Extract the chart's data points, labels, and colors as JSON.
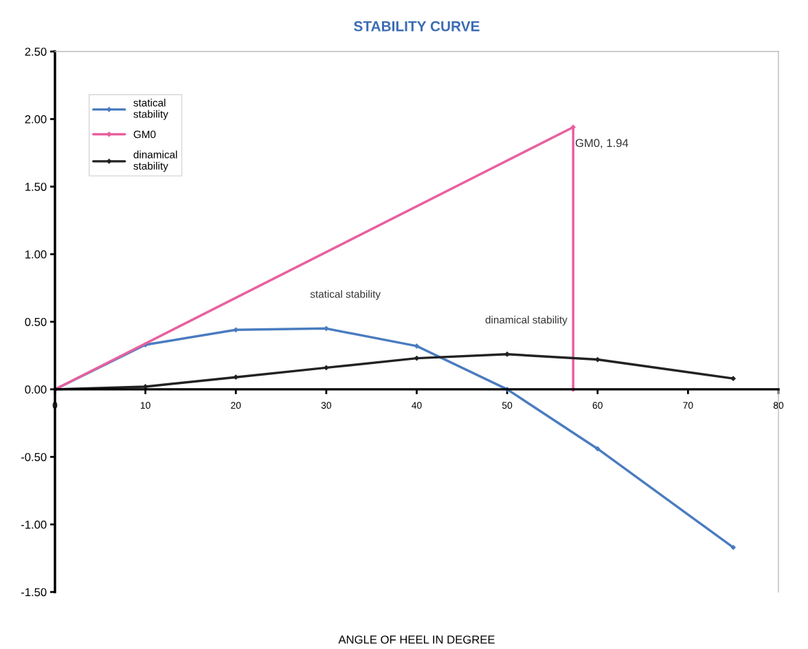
{
  "chart_data": {
    "type": "line",
    "title": "STABILITY CURVE",
    "xlabel": "ANGLE OF HEEL IN DEGREE",
    "xlim": [
      0,
      80
    ],
    "xticks": [
      0,
      10,
      20,
      30,
      40,
      50,
      60,
      70,
      80
    ],
    "ylim": [
      -1.5,
      2.5
    ],
    "yticks": [
      {
        "value": -1.5,
        "label": "-1.50"
      },
      {
        "value": -1.0,
        "label": "-1.00"
      },
      {
        "value": -0.5,
        "label": "-0.50"
      },
      {
        "value": 0,
        "label": "0.00"
      },
      {
        "value": 0.5,
        "label": "0.50"
      },
      {
        "value": 1.0,
        "label": "1.00"
      },
      {
        "value": 1.5,
        "label": "1.50"
      },
      {
        "value": 2.0,
        "label": "2.00"
      },
      {
        "value": 2.5,
        "label": "2.50"
      }
    ],
    "series": [
      {
        "name": "statical stability",
        "color": "#4a7cc0",
        "x": [
          0,
          10,
          20,
          30,
          40,
          50,
          60,
          75
        ],
        "values": [
          0,
          0.33,
          0.44,
          0.45,
          0.32,
          0.0,
          -0.44,
          -1.17
        ]
      },
      {
        "name": "GM0",
        "color": "#e8609f",
        "x": [
          0,
          57.3,
          57.3
        ],
        "values": [
          0,
          1.94,
          0
        ],
        "value_labels": [
          null,
          "GM0, 1.94",
          null
        ]
      },
      {
        "name": "dinamical stability",
        "color": "#222222",
        "x": [
          0,
          10,
          20,
          30,
          40,
          50,
          60,
          75
        ],
        "values": [
          0,
          0.02,
          0.09,
          0.16,
          0.23,
          0.26,
          0.22,
          0.08
        ]
      }
    ],
    "annotations": [
      {
        "text": "statical stability",
        "x": 30,
        "y": 0.45
      },
      {
        "text": "dinamical stability",
        "x": 50,
        "y": 0.26
      }
    ],
    "legend": "top left",
    "marker": "diamond",
    "grid": false
  }
}
